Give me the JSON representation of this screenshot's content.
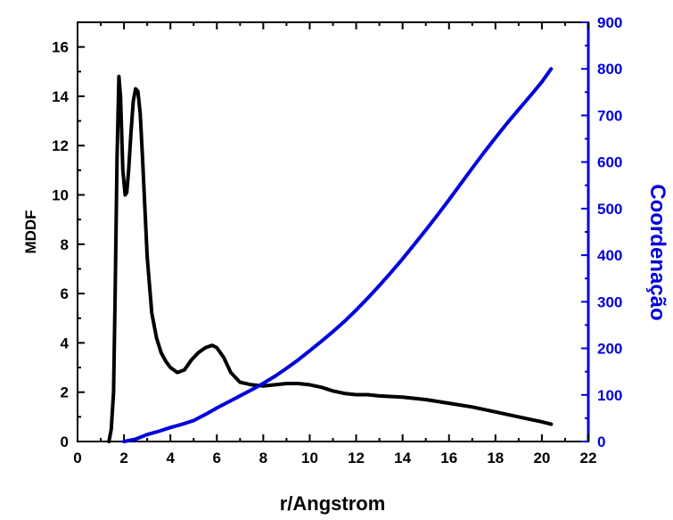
{
  "chart_data": {
    "type": "line",
    "title": "",
    "xlabel": "r/Angstrom",
    "ylabel_left": "MDDF",
    "ylabel_right": "Coordenação",
    "xlim": [
      0,
      22
    ],
    "ylim_left": [
      0,
      17
    ],
    "ylim_right": [
      0,
      900
    ],
    "x_ticks": [
      "0",
      "2",
      "4",
      "6",
      "8",
      "10",
      "12",
      "14",
      "16",
      "18",
      "20",
      "22"
    ],
    "y_left_ticks": [
      "0",
      "2",
      "4",
      "6",
      "8",
      "10",
      "12",
      "14",
      "16"
    ],
    "y_right_ticks": [
      "0",
      "100",
      "200",
      "300",
      "400",
      "500",
      "600",
      "700",
      "800",
      "900"
    ],
    "grid": false,
    "colors": {
      "left_axis": "#000000",
      "right_axis": "#0000dd"
    },
    "series": [
      {
        "axis": "left",
        "color": "#000000",
        "x": [
          1.35,
          1.45,
          1.55,
          1.62,
          1.7,
          1.78,
          1.85,
          1.95,
          2.05,
          2.12,
          2.2,
          2.3,
          2.4,
          2.5,
          2.6,
          2.7,
          2.8,
          2.9,
          3.0,
          3.2,
          3.4,
          3.6,
          3.8,
          4.0,
          4.3,
          4.6,
          4.9,
          5.2,
          5.5,
          5.8,
          6.0,
          6.3,
          6.6,
          7.0,
          7.5,
          8.0,
          8.5,
          9.0,
          9.5,
          10.0,
          10.5,
          11.0,
          11.5,
          12.0,
          12.5,
          13.0,
          14.0,
          15.0,
          16.0,
          17.0,
          18.0,
          19.0,
          20.0,
          20.4
        ],
        "y": [
          0.0,
          0.5,
          2.0,
          6.0,
          11.5,
          14.8,
          14.0,
          11.0,
          10.0,
          10.1,
          11.0,
          12.5,
          13.8,
          14.3,
          14.2,
          13.3,
          11.5,
          9.5,
          7.5,
          5.2,
          4.2,
          3.6,
          3.25,
          3.0,
          2.8,
          2.9,
          3.3,
          3.6,
          3.8,
          3.9,
          3.8,
          3.4,
          2.8,
          2.4,
          2.3,
          2.25,
          2.3,
          2.35,
          2.35,
          2.3,
          2.2,
          2.05,
          1.95,
          1.9,
          1.9,
          1.85,
          1.8,
          1.7,
          1.55,
          1.4,
          1.2,
          1.0,
          0.8,
          0.7
        ]
      },
      {
        "axis": "right",
        "color": "#0000dd",
        "x": [
          2.0,
          2.5,
          3.0,
          3.5,
          4.0,
          4.5,
          5.0,
          5.5,
          6.0,
          6.5,
          7.0,
          7.5,
          8.0,
          8.5,
          9.0,
          9.5,
          10.0,
          10.5,
          11.0,
          11.5,
          12.0,
          12.5,
          13.0,
          13.5,
          14.0,
          14.5,
          15.0,
          15.5,
          16.0,
          16.5,
          17.0,
          17.5,
          18.0,
          18.5,
          19.0,
          19.5,
          20.0,
          20.4
        ],
        "y": [
          0,
          5,
          15,
          22,
          30,
          37,
          45,
          58,
          72,
          85,
          98,
          111,
          125,
          140,
          157,
          175,
          195,
          215,
          236,
          258,
          282,
          308,
          335,
          363,
          392,
          423,
          454,
          486,
          519,
          553,
          587,
          620,
          652,
          683,
          713,
          742,
          772,
          800
        ]
      }
    ]
  }
}
